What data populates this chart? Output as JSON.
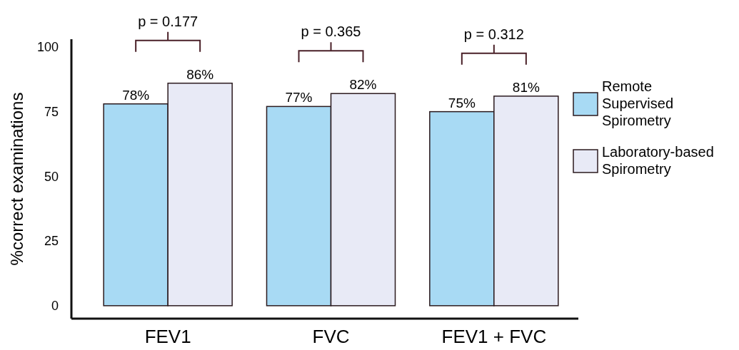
{
  "chart_data": {
    "type": "bar",
    "ylabel": "%correct examinations",
    "categories": [
      "FEV1",
      "FVC",
      "FEV1 + FVC"
    ],
    "series": [
      {
        "name": "Remote Supervised Spirometry",
        "color": "#a8daf4",
        "values": [
          78,
          77,
          75
        ],
        "value_labels": [
          "78%",
          "77%",
          "75%"
        ]
      },
      {
        "name": "Laboratory-based Spirometry",
        "color": "#e8eaf6",
        "values": [
          86,
          82,
          81
        ],
        "value_labels": [
          "86%",
          "82%",
          "81%"
        ]
      }
    ],
    "ylim": [
      -5,
      103
    ],
    "yticks": [
      0,
      25,
      50,
      75,
      100
    ],
    "grid": false,
    "legend": "right",
    "annotations": [
      "p = 0.177",
      "p = 0.365",
      "p = 0.312"
    ]
  }
}
